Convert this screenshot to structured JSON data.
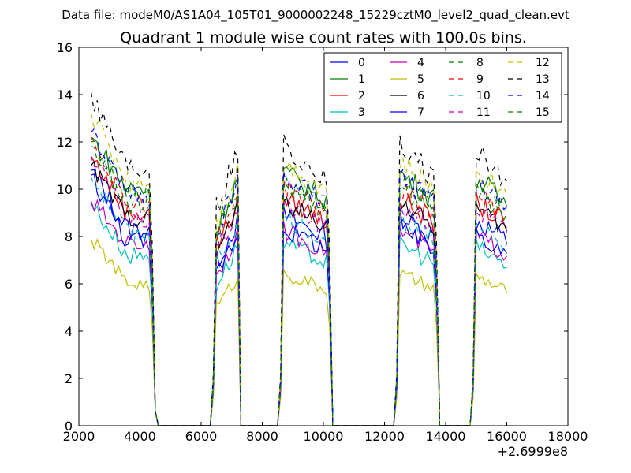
{
  "header": {
    "data_file": "Data file: modeM0/AS1A04_105T01_9000002248_15229cztM0_level2_quad_clean.evt"
  },
  "chart_data": {
    "type": "line",
    "title": "Quadrant 1 module wise count rates with 100.0s bins.",
    "xlabel": "",
    "ylabel": "",
    "x_offset_label": "+2.6999e8",
    "xlim": [
      2000,
      18000
    ],
    "ylim": [
      0,
      16
    ],
    "x_ticks": [
      2000,
      4000,
      6000,
      8000,
      10000,
      12000,
      14000,
      16000,
      18000
    ],
    "y_ticks": [
      0,
      2,
      4,
      6,
      8,
      10,
      12,
      14,
      16
    ],
    "grid": false,
    "legend_position": "top-right",
    "legend_columns": 4,
    "segments": [
      {
        "start": 2400,
        "end": 4300,
        "ramp_end": 4600
      },
      {
        "start": 6400,
        "end": 7200,
        "ramp_start": 6400
      },
      {
        "start": 8600,
        "end": 10100,
        "ramp_end": 10300
      },
      {
        "start": 12400,
        "end": 13600,
        "ramp_end": 13800
      },
      {
        "start": 14900,
        "end": 16000
      }
    ],
    "series": [
      {
        "name": "0",
        "color": "#0000ff",
        "dash": "solid",
        "mean": 8.3,
        "start": 10.8,
        "wiggle": 0.5
      },
      {
        "name": "1",
        "color": "#008000",
        "dash": "solid",
        "mean": 10.0,
        "start": 12.2,
        "wiggle": 0.5
      },
      {
        "name": "2",
        "color": "#ff0000",
        "dash": "solid",
        "mean": 9.0,
        "start": 11.4,
        "wiggle": 0.45
      },
      {
        "name": "3",
        "color": "#00bfbf",
        "dash": "solid",
        "mean": 7.2,
        "start": 9.4,
        "wiggle": 0.4
      },
      {
        "name": "4",
        "color": "#bf00bf",
        "dash": "solid",
        "mean": 7.7,
        "start": 9.5,
        "wiggle": 0.4
      },
      {
        "name": "5",
        "color": "#bfbf00",
        "dash": "solid",
        "mean": 6.0,
        "start": 7.9,
        "wiggle": 0.3
      },
      {
        "name": "6",
        "color": "#000000",
        "dash": "solid",
        "mean": 8.8,
        "start": 11.0,
        "wiggle": 0.4
      },
      {
        "name": "7",
        "color": "#0000ff",
        "dash": "solid",
        "mean": 7.8,
        "start": 10.6,
        "wiggle": 0.45
      },
      {
        "name": "8",
        "color": "#008000",
        "dash": "dashed",
        "mean": 9.7,
        "start": 11.8,
        "wiggle": 0.45
      },
      {
        "name": "9",
        "color": "#ff0000",
        "dash": "dashed",
        "mean": 9.4,
        "start": 12.2,
        "wiggle": 0.45
      },
      {
        "name": "10",
        "color": "#00bfbf",
        "dash": "dashed",
        "mean": 8.2,
        "start": 10.5,
        "wiggle": 0.4
      },
      {
        "name": "11",
        "color": "#bf00bf",
        "dash": "dashed",
        "mean": 8.7,
        "start": 11.4,
        "wiggle": 0.45
      },
      {
        "name": "12",
        "color": "#bfbf00",
        "dash": "dashed",
        "mean": 10.4,
        "start": 13.2,
        "wiggle": 0.5
      },
      {
        "name": "13",
        "color": "#000000",
        "dash": "dashed",
        "mean": 11.0,
        "start": 14.1,
        "wiggle": 0.55
      },
      {
        "name": "14",
        "color": "#0000ff",
        "dash": "dashed",
        "mean": 9.8,
        "start": 12.4,
        "wiggle": 0.5
      },
      {
        "name": "15",
        "color": "#008000",
        "dash": "dashed",
        "mean": 9.5,
        "start": 12.0,
        "wiggle": 0.5
      }
    ]
  }
}
